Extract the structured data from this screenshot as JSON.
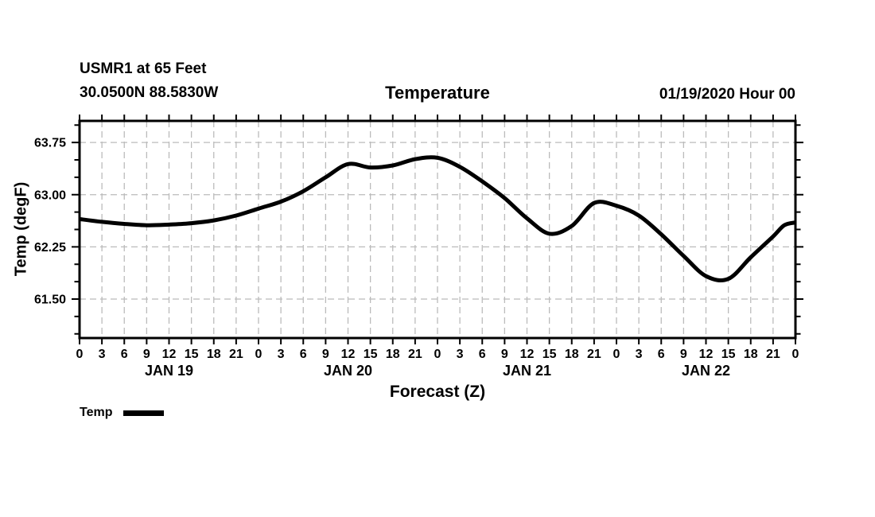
{
  "header": {
    "station_line": "USMR1 at 65 Feet",
    "coords_line": "30.0500N 88.5830W",
    "datetime_line": "01/19/2020 Hour 00"
  },
  "legend": {
    "label": "Temp"
  },
  "chart_data": {
    "type": "line",
    "title": "Temperature",
    "xlabel": "Forecast (Z)",
    "ylabel": "Temp (degF)",
    "x_hours": [
      0,
      3,
      6,
      9,
      12,
      15,
      18,
      21,
      24,
      27,
      30,
      33,
      36,
      39,
      42,
      45,
      48,
      51,
      54,
      57,
      60,
      63,
      66,
      69,
      72,
      75,
      78,
      81,
      84,
      87,
      90,
      93,
      94.5,
      96
    ],
    "series": [
      {
        "name": "Temp",
        "color": "#000000",
        "line_width": 5,
        "values": [
          62.65,
          62.61,
          62.58,
          62.56,
          62.57,
          62.59,
          62.63,
          62.7,
          62.8,
          62.9,
          63.05,
          63.25,
          63.44,
          63.39,
          63.42,
          63.51,
          63.53,
          63.4,
          63.19,
          62.95,
          62.66,
          62.44,
          62.55,
          62.88,
          62.84,
          62.7,
          62.43,
          62.12,
          61.83,
          61.79,
          62.1,
          62.4,
          62.56,
          62.6
        ]
      }
    ],
    "xlim": [
      0,
      96
    ],
    "ylim": [
      60.94,
      64.06
    ],
    "yticks_major": [
      61.5,
      62.25,
      63.0,
      63.75
    ],
    "ytick_labels": [
      "61.50",
      "62.25",
      "63.00",
      "63.75"
    ],
    "y_minor_from": 61.0,
    "y_minor_to": 64.0,
    "y_minor_step": 0.25,
    "xtick_step_hours": 3,
    "xtick_label_mod": 24,
    "day_labels": [
      {
        "label": "JAN 19",
        "hour": 12
      },
      {
        "label": "JAN 20",
        "hour": 36
      },
      {
        "label": "JAN 21",
        "hour": 60
      },
      {
        "label": "JAN 22",
        "hour": 84
      }
    ],
    "grid": {
      "show": true,
      "style": "dashed",
      "color": "#bbbbbb"
    },
    "axis_color": "#000000",
    "legend_position": "bottom-left"
  }
}
